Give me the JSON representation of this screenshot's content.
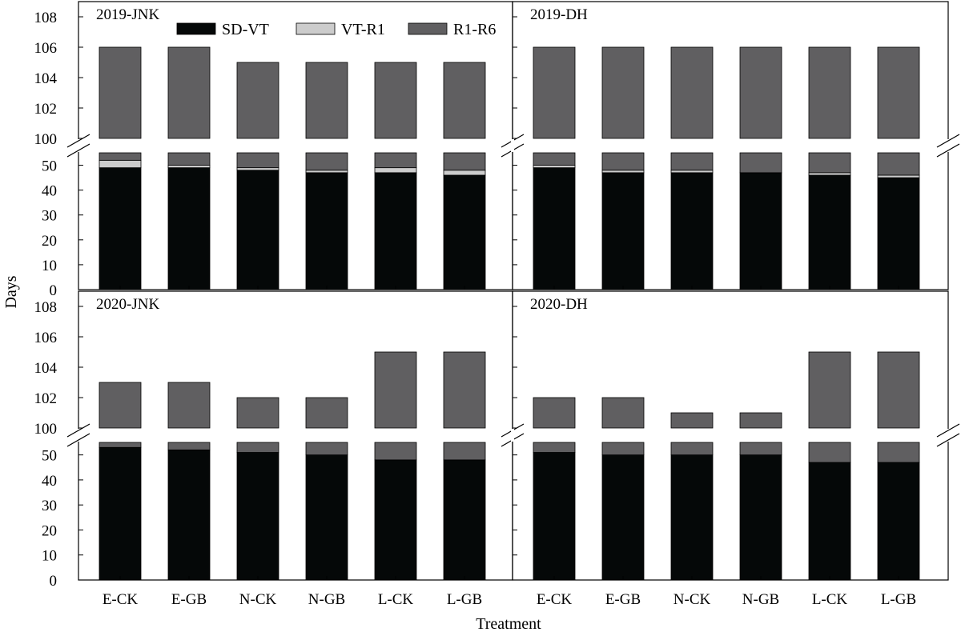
{
  "chart_data": {
    "type": "bar",
    "stacked": true,
    "broken_y_axis": true,
    "xlabel": "Treatment",
    "ylabel": "Days",
    "categories": [
      "E-CK",
      "E-GB",
      "N-CK",
      "N-GB",
      "L-CK",
      "L-GB"
    ],
    "legend": {
      "placement": "top-left panel, top",
      "items": [
        {
          "name": "SD-VT",
          "color": "#050808"
        },
        {
          "name": "VT-R1",
          "color": "#cccccc"
        },
        {
          "name": "R1-R6",
          "color": "#605f61"
        }
      ]
    },
    "lower_axis": {
      "range": [
        0,
        55
      ],
      "ticks": [
        "0",
        "10",
        "20",
        "30",
        "40",
        "50"
      ]
    },
    "upper_axis": {
      "range": [
        100,
        109
      ],
      "ticks": [
        "100",
        "102",
        "104",
        "106",
        "108"
      ]
    },
    "grid": false,
    "panels": [
      {
        "title": "2019-JNK",
        "series": [
          {
            "name": "SD-VT",
            "values": [
              49,
              49,
              48,
              47,
              47,
              46
            ]
          },
          {
            "name": "VT-R1",
            "values": [
              3,
              1,
              1,
              1,
              2,
              2
            ]
          },
          {
            "name": "R1-R6",
            "values": [
              54,
              56,
              56,
              57,
              56,
              57
            ]
          }
        ],
        "totals": [
          106,
          106,
          105,
          105,
          105,
          105
        ]
      },
      {
        "title": "2019-DH",
        "series": [
          {
            "name": "SD-VT",
            "values": [
              49,
              47,
              47,
              47,
              46,
              45
            ]
          },
          {
            "name": "VT-R1",
            "values": [
              1,
              1,
              1,
              0,
              1,
              1
            ]
          },
          {
            "name": "R1-R6",
            "values": [
              56,
              58,
              58,
              59,
              59,
              60
            ]
          }
        ],
        "totals": [
          106,
          106,
          106,
          106,
          106,
          106
        ]
      },
      {
        "title": "2020-JNK",
        "series": [
          {
            "name": "SD-VT",
            "values": [
              53,
              52,
              51,
              50,
              48,
              48
            ]
          },
          {
            "name": "VT-R1",
            "values": [
              0,
              0,
              0,
              0,
              0,
              0
            ]
          },
          {
            "name": "R1-R6",
            "values": [
              50,
              51,
              51,
              52,
              57,
              57
            ]
          }
        ],
        "totals": [
          103,
          103,
          102,
          102,
          105,
          105
        ]
      },
      {
        "title": "2020-DH",
        "series": [
          {
            "name": "SD-VT",
            "values": [
              51,
              50,
              50,
              50,
              47,
              47
            ]
          },
          {
            "name": "VT-R1",
            "values": [
              0,
              0,
              0,
              0,
              0,
              0
            ]
          },
          {
            "name": "R1-R6",
            "values": [
              51,
              52,
              51,
              51,
              58,
              58
            ]
          }
        ],
        "totals": [
          102,
          102,
          101,
          101,
          105,
          105
        ]
      }
    ]
  }
}
